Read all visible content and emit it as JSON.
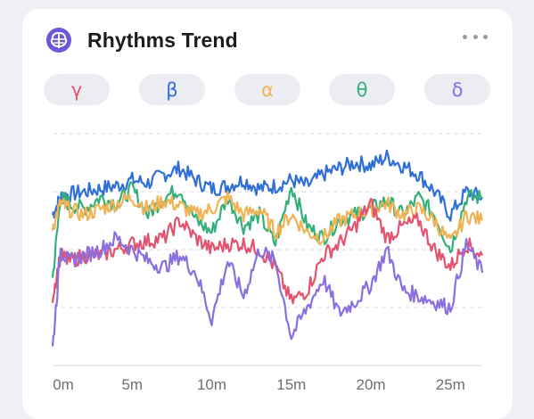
{
  "header": {
    "title": "Rhythms Trend"
  },
  "icons": {
    "brand": "brain-icon",
    "menu": "more-horizontal-icon"
  },
  "bands": [
    {
      "label": "γ",
      "color": "#e2536f"
    },
    {
      "label": "β",
      "color": "#2f6fd6"
    },
    {
      "label": "α",
      "color": "#f0b454"
    },
    {
      "label": "θ",
      "color": "#33b07a"
    },
    {
      "label": "δ",
      "color": "#8a6fe0"
    }
  ],
  "chart_data": {
    "type": "line",
    "x_ticks": [
      "0m",
      "5m",
      "10m",
      "15m",
      "20m",
      "25m"
    ],
    "x_range": [
      0,
      27
    ],
    "ylim": [
      0,
      4
    ],
    "grid": true,
    "series": [
      {
        "color": "#2f6fd6",
        "x": [
          0,
          0.5,
          1,
          2,
          3,
          4,
          5,
          6,
          7,
          8,
          9,
          10,
          11,
          12,
          13,
          14,
          15,
          16,
          17,
          18,
          19,
          20,
          21,
          22,
          23,
          24,
          25,
          26,
          27
        ],
        "y": [
          2.6,
          2.9,
          2.95,
          3.0,
          3.05,
          3.1,
          3.2,
          3.15,
          3.3,
          3.4,
          3.2,
          3.05,
          3.1,
          3.2,
          3.05,
          3.1,
          3.2,
          3.1,
          3.3,
          3.4,
          3.5,
          3.45,
          3.6,
          3.45,
          3.3,
          3.0,
          2.6,
          3.0,
          2.9
        ]
      },
      {
        "color": "#33b07a",
        "x": [
          0,
          0.5,
          1,
          2,
          3,
          4,
          5,
          6,
          7,
          8,
          9,
          10,
          11,
          12,
          13,
          14,
          15,
          16,
          17,
          18,
          19,
          20,
          21,
          22,
          23,
          24,
          25,
          26,
          27
        ],
        "y": [
          1.5,
          2.9,
          2.8,
          2.7,
          2.9,
          2.8,
          3.05,
          2.6,
          2.9,
          3.05,
          2.5,
          2.3,
          2.9,
          2.4,
          2.6,
          2.1,
          3.1,
          2.4,
          2.2,
          2.5,
          2.6,
          2.7,
          2.85,
          2.6,
          2.9,
          2.6,
          2.0,
          2.9,
          2.9
        ]
      },
      {
        "color": "#f0b454",
        "x": [
          0,
          0.5,
          1,
          2,
          3,
          4,
          5,
          6,
          7,
          8,
          9,
          10,
          11,
          12,
          13,
          14,
          15,
          16,
          17,
          18,
          19,
          20,
          21,
          22,
          23,
          24,
          25,
          26,
          27
        ],
        "y": [
          2.4,
          2.8,
          2.7,
          2.6,
          2.7,
          2.8,
          2.9,
          2.7,
          2.85,
          2.75,
          2.6,
          2.7,
          2.9,
          2.6,
          2.7,
          2.3,
          2.6,
          2.3,
          2.2,
          2.5,
          2.6,
          2.7,
          2.8,
          2.6,
          2.7,
          2.5,
          2.1,
          2.6,
          2.5
        ]
      },
      {
        "color": "#e2536f",
        "x": [
          0,
          0.5,
          1,
          2,
          3,
          4,
          5,
          6,
          7,
          8,
          9,
          10,
          11,
          12,
          13,
          14,
          15,
          16,
          17,
          18,
          19,
          20,
          21,
          22,
          23,
          24,
          25,
          26,
          27
        ],
        "y": [
          1.2,
          1.9,
          1.8,
          1.9,
          1.9,
          2.0,
          2.1,
          2.15,
          2.2,
          2.5,
          2.2,
          2.0,
          2.1,
          2.1,
          2.0,
          1.7,
          1.1,
          1.3,
          1.9,
          2.1,
          2.4,
          2.8,
          2.2,
          2.4,
          2.5,
          2.0,
          1.7,
          2.1,
          1.9
        ]
      },
      {
        "color": "#8a6fe0",
        "x": [
          0,
          0.5,
          1,
          2,
          3,
          4,
          5,
          6,
          7,
          8,
          9,
          10,
          11,
          12,
          13,
          14,
          15,
          16,
          17,
          18,
          19,
          20,
          21,
          22,
          23,
          24,
          25,
          26,
          27
        ],
        "y": [
          0.3,
          2.0,
          1.8,
          1.9,
          2.0,
          2.2,
          2.0,
          1.8,
          1.7,
          1.9,
          1.6,
          0.8,
          1.8,
          1.2,
          2.0,
          1.8,
          0.5,
          1.0,
          1.5,
          0.9,
          1.1,
          1.4,
          2.0,
          1.3,
          1.2,
          1.1,
          1.0,
          2.1,
          1.6
        ]
      }
    ]
  }
}
